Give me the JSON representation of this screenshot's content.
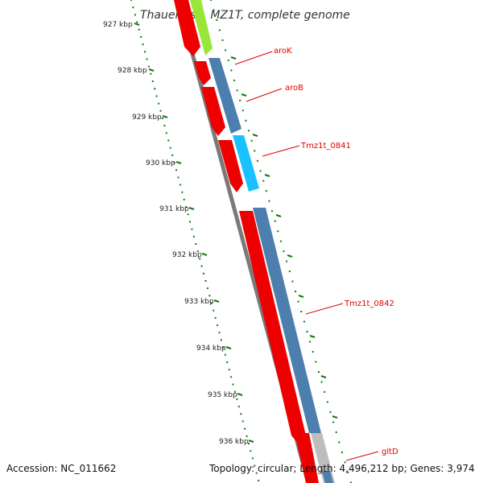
{
  "title": "Thauera sp. MZ1T, complete genome",
  "footer": {
    "accession": "Accession: NC_011662",
    "summary": "Topology: circular; Length: 4,496,212 bp; Genes: 3,974"
  },
  "colors": {
    "backbone": "#7a7a7a",
    "forward_cds": "#ee0000",
    "reverse_cds": "#4d7fae",
    "highlight_cds": "#19c2ff",
    "lime_cds": "#99e63a",
    "gray_cds": "#bdbdbd",
    "tick_green": "#107a10",
    "label_red": "#e00000"
  },
  "kbp_labels": [
    "927 kbp",
    "928 kbp",
    "929 kbp",
    "930 kbp",
    "931 kbp",
    "932 kbp",
    "933 kbp",
    "934 kbp",
    "935 kbp",
    "936 kbp"
  ],
  "gene_labels": [
    "aroK",
    "aroB",
    "Tmz1t_0841",
    "Tmz1t_0842",
    "gltD"
  ]
}
